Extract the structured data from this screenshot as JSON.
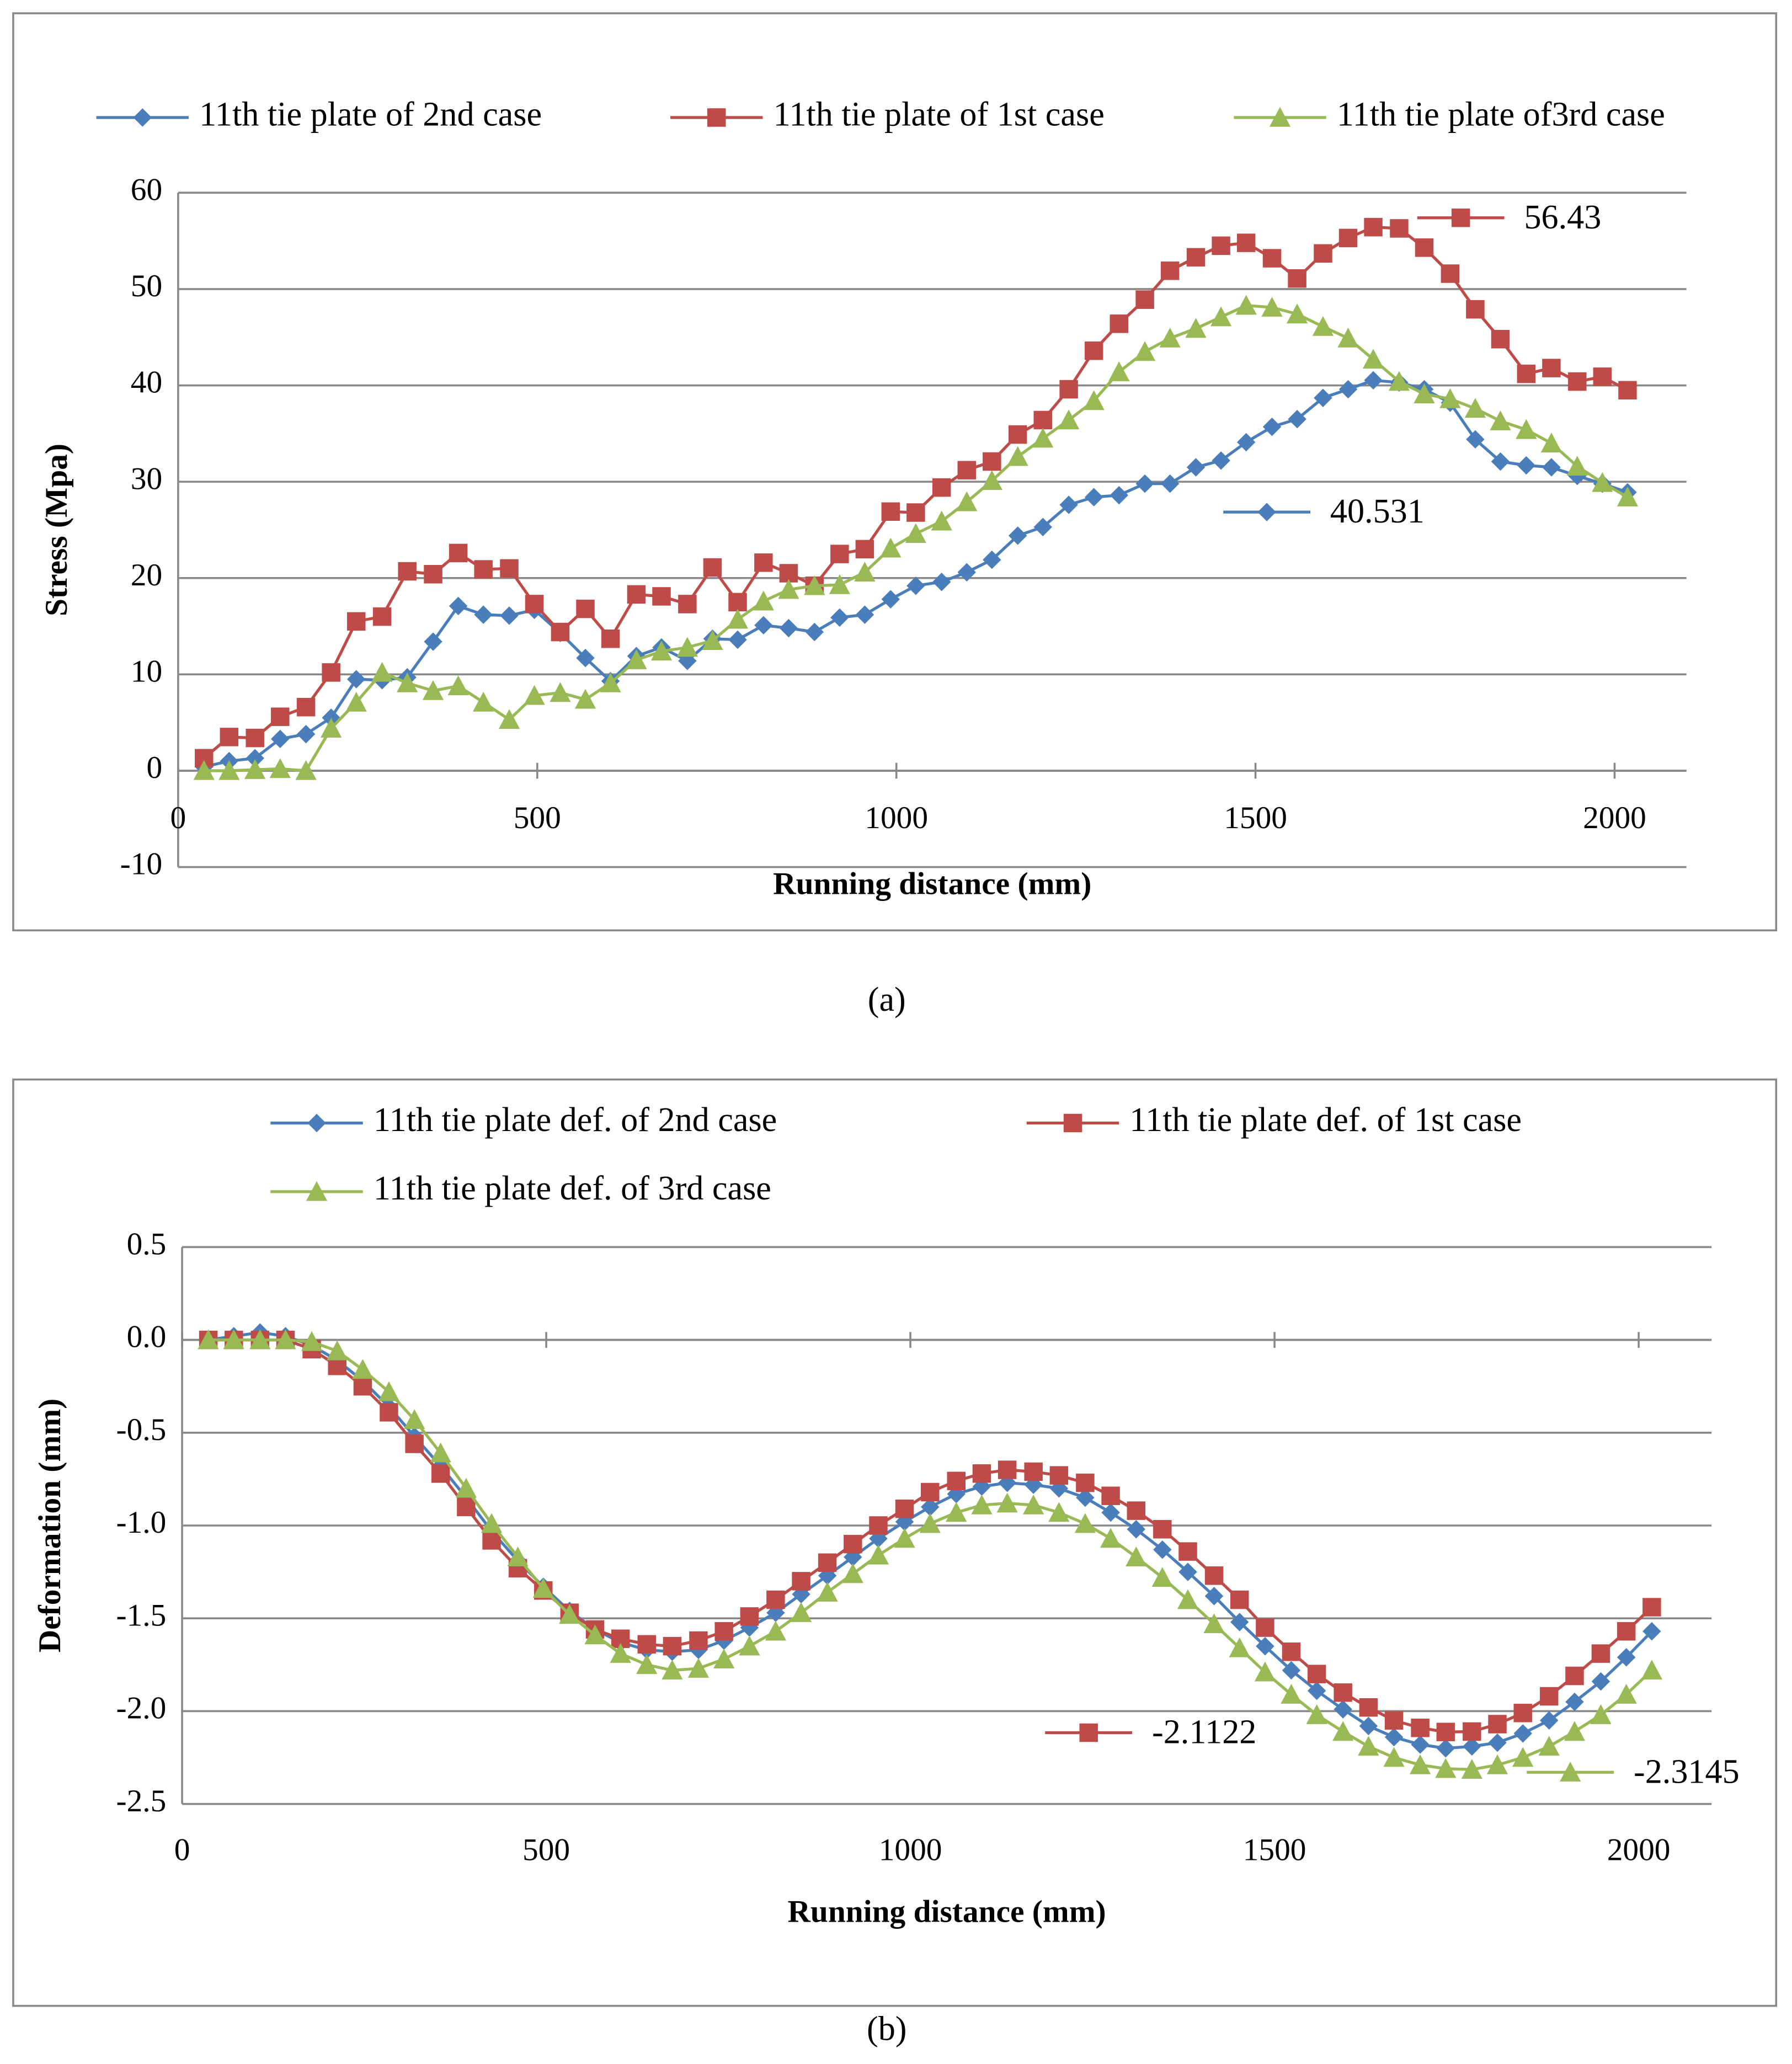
{
  "chart_data": [
    {
      "type": "line",
      "caption": "(a)",
      "xlabel": "Running distance (mm)",
      "ylabel": "Stress (Mpa)",
      "x": [
        36,
        71,
        107,
        142,
        178,
        213,
        248,
        284,
        319,
        355,
        390,
        425,
        461,
        496,
        532,
        567,
        602,
        638,
        673,
        709,
        744,
        779,
        815,
        850,
        886,
        921,
        956,
        992,
        1027,
        1063,
        1098,
        1133,
        1169,
        1204,
        1240,
        1275,
        1310,
        1346,
        1381,
        1417,
        1452,
        1487,
        1523,
        1558,
        1594,
        1629,
        1664,
        1700,
        1735,
        1771,
        1806,
        1841,
        1877,
        1912,
        1948,
        1983,
        2018
      ],
      "xlim": [
        0,
        2100
      ],
      "xticks": [
        0,
        500,
        1000,
        1500,
        2000
      ],
      "ylim": [
        -10,
        60
      ],
      "yticks": [
        -10,
        0,
        10,
        20,
        30,
        40,
        50,
        60
      ],
      "grid": true,
      "xlabel_position": "axis",
      "series": [
        {
          "name": "11th tie plate of 2nd case",
          "color": "#4a7ebb",
          "marker": "diamond",
          "values": [
            0.4,
            1.0,
            1.3,
            3.3,
            3.8,
            5.5,
            9.5,
            9.4,
            9.7,
            13.4,
            17.1,
            16.2,
            16.1,
            16.7,
            14.3,
            11.7,
            9.3,
            11.9,
            12.8,
            11.4,
            13.7,
            13.6,
            15.1,
            14.8,
            14.4,
            15.9,
            16.2,
            17.8,
            19.2,
            19.6,
            20.6,
            21.9,
            24.4,
            25.3,
            27.6,
            28.4,
            28.6,
            29.8,
            29.8,
            31.5,
            32.2,
            34.1,
            35.7,
            36.5,
            38.7,
            39.6,
            40.531,
            40.3,
            39.6,
            38.2,
            34.4,
            32.1,
            31.7,
            31.5,
            30.6,
            29.8,
            28.9
          ],
          "value_labels": [
            null,
            null,
            null,
            null,
            null,
            null,
            null,
            null,
            null,
            null,
            null,
            null,
            null,
            null,
            null,
            null,
            null,
            null,
            null,
            null,
            null,
            null,
            null,
            null,
            null,
            null,
            null,
            null,
            null,
            null,
            null,
            null,
            null,
            null,
            null,
            null,
            null,
            null,
            null,
            null,
            null,
            null,
            null,
            null,
            null,
            null,
            "40.531",
            null,
            null,
            null,
            null,
            null,
            null,
            null,
            null,
            null,
            null
          ]
        },
        {
          "name": "11th tie plate of 1st case",
          "color": "#be4b48",
          "marker": "square",
          "values": [
            1.3,
            3.5,
            3.4,
            5.6,
            6.6,
            10.2,
            15.5,
            16,
            20.7,
            20.4,
            22.6,
            20.9,
            21,
            17.3,
            14.4,
            16.8,
            13.7,
            18.3,
            18.1,
            17.3,
            21.1,
            17.5,
            21.6,
            20.5,
            19.2,
            22.5,
            23,
            26.9,
            26.8,
            29.4,
            31.2,
            32.1,
            34.9,
            36.4,
            39.6,
            43.6,
            46.4,
            48.9,
            51.9,
            53.3,
            54.5,
            54.8,
            53.2,
            51.1,
            53.7,
            55.3,
            56.43,
            56.3,
            54.3,
            51.6,
            47.9,
            44.8,
            41.2,
            41.8,
            40.4,
            40.9,
            39.5
          ],
          "value_labels": [
            null,
            null,
            null,
            null,
            null,
            null,
            null,
            null,
            null,
            null,
            null,
            null,
            null,
            null,
            null,
            null,
            null,
            null,
            null,
            null,
            null,
            null,
            null,
            null,
            null,
            null,
            null,
            null,
            null,
            null,
            null,
            null,
            null,
            null,
            null,
            null,
            null,
            null,
            null,
            null,
            null,
            null,
            null,
            null,
            null,
            null,
            "56.43",
            null,
            null,
            null,
            null,
            null,
            null,
            null,
            null,
            null,
            null
          ]
        },
        {
          "name": "11th tie plate of3rd case",
          "color": "#98b954",
          "marker": "triangle",
          "values": [
            0,
            0,
            0.1,
            0.2,
            0,
            4.4,
            7.1,
            10.2,
            9.1,
            8.3,
            8.8,
            7.1,
            5.3,
            7.8,
            8.1,
            7.4,
            9.1,
            11.5,
            12.4,
            12.8,
            13.5,
            15.7,
            17.6,
            18.8,
            19.2,
            19.3,
            20.6,
            23.1,
            24.6,
            25.9,
            27.9,
            30.1,
            32.6,
            34.5,
            36.4,
            38.4,
            41.4,
            43.5,
            44.9,
            45.9,
            47.1,
            48.3,
            48.1,
            47.4,
            46.1,
            44.9,
            42.7,
            40.4,
            39.1,
            38.6,
            37.6,
            36.3,
            35.4,
            34.0,
            31.6,
            29.9,
            28.4
          ]
        }
      ]
    },
    {
      "type": "line",
      "caption": "(b)",
      "xlabel": "Running distance (mm)",
      "ylabel": "Deformation (mm)",
      "x": [
        36,
        71,
        107,
        142,
        178,
        213,
        248,
        284,
        319,
        355,
        390,
        425,
        461,
        496,
        532,
        567,
        602,
        638,
        673,
        709,
        744,
        779,
        815,
        850,
        886,
        921,
        956,
        992,
        1027,
        1063,
        1098,
        1133,
        1169,
        1204,
        1240,
        1275,
        1310,
        1346,
        1381,
        1417,
        1452,
        1487,
        1523,
        1558,
        1594,
        1629,
        1664,
        1700,
        1735,
        1771,
        1806,
        1841,
        1877,
        1912,
        1948,
        1983,
        2018
      ],
      "xlim": [
        0,
        2100
      ],
      "xticks": [
        0,
        500,
        1000,
        1500,
        2000
      ],
      "ylim": [
        -2.5,
        0.5
      ],
      "yticks": [
        -2.5,
        {
          "value": -2,
          "label": "-2.0"
        },
        -1.5,
        {
          "value": -1,
          "label": "-1.0"
        },
        -0.5,
        {
          "value": 0,
          "label": "0.0"
        },
        0.5
      ],
      "grid": true,
      "xlabel_position": "low",
      "series": [
        {
          "name": "11th tie plate def. of 2nd case",
          "color": "#4a7ebb",
          "marker": "diamond",
          "values": [
            0.0,
            0.02,
            0.04,
            0.02,
            -0.03,
            -0.11,
            -0.22,
            -0.36,
            -0.52,
            -0.68,
            -0.85,
            -1.03,
            -1.19,
            -1.33,
            -1.46,
            -1.56,
            -1.63,
            -1.67,
            -1.68,
            -1.67,
            -1.62,
            -1.55,
            -1.47,
            -1.37,
            -1.27,
            -1.17,
            -1.07,
            -0.98,
            -0.9,
            -0.83,
            -0.79,
            -0.77,
            -0.78,
            -0.8,
            -0.85,
            -0.93,
            -1.02,
            -1.13,
            -1.25,
            -1.38,
            -1.52,
            -1.65,
            -1.78,
            -1.89,
            -1.99,
            -2.08,
            -2.14,
            -2.18,
            -2.2,
            -2.19,
            -2.17,
            -2.12,
            -2.05,
            -1.95,
            -1.84,
            -1.71,
            -1.57
          ]
        },
        {
          "name": "11th tie plate def. of 1st case",
          "color": "#be4b48",
          "marker": "square",
          "values": [
            0.0,
            0.0,
            0.0,
            0.0,
            -0.05,
            -0.14,
            -0.25,
            -0.39,
            -0.56,
            -0.72,
            -0.9,
            -1.08,
            -1.23,
            -1.35,
            -1.47,
            -1.56,
            -1.61,
            -1.64,
            -1.65,
            -1.62,
            -1.57,
            -1.49,
            -1.4,
            -1.3,
            -1.2,
            -1.1,
            -1.0,
            -0.91,
            -0.82,
            -0.76,
            -0.72,
            -0.7,
            -0.71,
            -0.73,
            -0.77,
            -0.84,
            -0.92,
            -1.02,
            -1.14,
            -1.27,
            -1.4,
            -1.55,
            -1.68,
            -1.8,
            -1.9,
            -1.98,
            -2.05,
            -2.09,
            -2.1122,
            -2.11,
            -2.07,
            -2.01,
            -1.92,
            -1.81,
            -1.69,
            -1.57,
            -1.44
          ],
          "value_labels": [
            null,
            null,
            null,
            null,
            null,
            null,
            null,
            null,
            null,
            null,
            null,
            null,
            null,
            null,
            null,
            null,
            null,
            null,
            null,
            null,
            null,
            null,
            null,
            null,
            null,
            null,
            null,
            null,
            null,
            null,
            null,
            null,
            null,
            null,
            null,
            null,
            null,
            null,
            null,
            null,
            null,
            null,
            null,
            null,
            null,
            null,
            null,
            null,
            "-2.1122",
            null,
            null,
            null,
            null,
            null,
            null,
            null,
            null
          ]
        },
        {
          "name": "11th tie plate def. of 3rd case",
          "color": "#98b954",
          "marker": "triangle",
          "values": [
            0.0,
            0.0,
            0.0,
            0.0,
            -0.01,
            -0.06,
            -0.16,
            -0.28,
            -0.43,
            -0.61,
            -0.8,
            -0.99,
            -1.17,
            -1.34,
            -1.48,
            -1.59,
            -1.69,
            -1.75,
            -1.78,
            -1.77,
            -1.72,
            -1.65,
            -1.57,
            -1.47,
            -1.36,
            -1.26,
            -1.16,
            -1.07,
            -0.99,
            -0.93,
            -0.89,
            -0.88,
            -0.89,
            -0.93,
            -0.99,
            -1.07,
            -1.17,
            -1.28,
            -1.4,
            -1.53,
            -1.66,
            -1.79,
            -1.91,
            -2.02,
            -2.11,
            -2.19,
            -2.25,
            -2.29,
            -2.31,
            -2.3145,
            -2.29,
            -2.25,
            -2.19,
            -2.11,
            -2.02,
            -1.91,
            -1.78
          ],
          "value_labels": [
            null,
            null,
            null,
            null,
            null,
            null,
            null,
            null,
            null,
            null,
            null,
            null,
            null,
            null,
            null,
            null,
            null,
            null,
            null,
            null,
            null,
            null,
            null,
            null,
            null,
            null,
            null,
            null,
            null,
            null,
            null,
            null,
            null,
            null,
            null,
            null,
            null,
            null,
            null,
            null,
            null,
            null,
            null,
            null,
            null,
            null,
            null,
            null,
            null,
            "-2.3145",
            null,
            null,
            null,
            null,
            null,
            null,
            null
          ]
        }
      ]
    }
  ]
}
